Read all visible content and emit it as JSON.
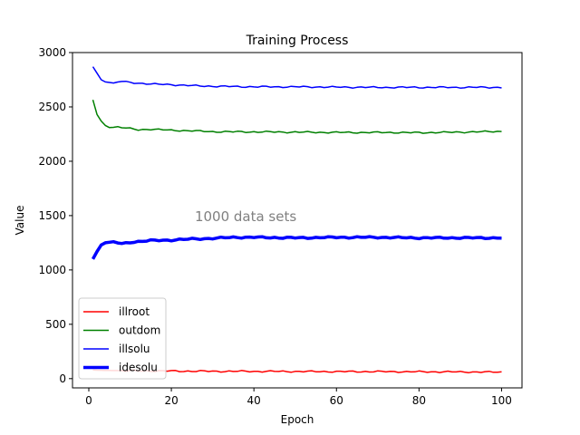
{
  "chart_data": {
    "type": "line",
    "title": "Training Process",
    "xlabel": "Epoch",
    "ylabel": "Value",
    "xlim": [
      -3.95,
      104.95
    ],
    "ylim": [
      -85,
      3000
    ],
    "xticks": [
      0,
      20,
      40,
      60,
      80,
      100
    ],
    "yticks": [
      0,
      500,
      1000,
      1500,
      2000,
      2500,
      3000
    ],
    "grid": false,
    "legend_position": "lower-left",
    "annotation": {
      "text": "1000 data sets",
      "x": 38,
      "y": 1450
    },
    "series": [
      {
        "name": "illroot",
        "color": "#ff0000",
        "width": 1.5,
        "anchors": [
          [
            1,
            80
          ],
          [
            2,
            78
          ],
          [
            5,
            75
          ],
          [
            10,
            72
          ],
          [
            20,
            70
          ],
          [
            30,
            68
          ],
          [
            40,
            67
          ],
          [
            50,
            66
          ],
          [
            60,
            65
          ],
          [
            70,
            65
          ],
          [
            80,
            63
          ],
          [
            90,
            62
          ],
          [
            100,
            60
          ]
        ]
      },
      {
        "name": "outdom",
        "color": "#008000",
        "width": 1.5,
        "anchors": [
          [
            1,
            2565
          ],
          [
            2,
            2430
          ],
          [
            3,
            2370
          ],
          [
            4,
            2330
          ],
          [
            5,
            2310
          ],
          [
            7,
            2315
          ],
          [
            9,
            2305
          ],
          [
            12,
            2290
          ],
          [
            15,
            2295
          ],
          [
            20,
            2285
          ],
          [
            25,
            2280
          ],
          [
            30,
            2272
          ],
          [
            40,
            2270
          ],
          [
            50,
            2268
          ],
          [
            60,
            2265
          ],
          [
            70,
            2265
          ],
          [
            80,
            2263
          ],
          [
            90,
            2268
          ],
          [
            100,
            2275
          ]
        ]
      },
      {
        "name": "illsolu",
        "color": "#0000ff",
        "width": 1.5,
        "anchors": [
          [
            1,
            2870
          ],
          [
            2,
            2810
          ],
          [
            3,
            2750
          ],
          [
            4,
            2730
          ],
          [
            6,
            2720
          ],
          [
            8,
            2735
          ],
          [
            10,
            2725
          ],
          [
            15,
            2710
          ],
          [
            20,
            2705
          ],
          [
            25,
            2695
          ],
          [
            30,
            2690
          ],
          [
            40,
            2685
          ],
          [
            50,
            2685
          ],
          [
            60,
            2682
          ],
          [
            70,
            2680
          ],
          [
            80,
            2680
          ],
          [
            90,
            2680
          ],
          [
            100,
            2680
          ]
        ]
      },
      {
        "name": "idesolu",
        "color": "#0000ff",
        "width": 3.5,
        "anchors": [
          [
            1,
            1100
          ],
          [
            2,
            1170
          ],
          [
            3,
            1230
          ],
          [
            4,
            1250
          ],
          [
            6,
            1260
          ],
          [
            8,
            1240
          ],
          [
            10,
            1255
          ],
          [
            15,
            1270
          ],
          [
            20,
            1275
          ],
          [
            25,
            1285
          ],
          [
            30,
            1290
          ],
          [
            35,
            1300
          ],
          [
            40,
            1300
          ],
          [
            50,
            1295
          ],
          [
            60,
            1300
          ],
          [
            70,
            1300
          ],
          [
            80,
            1295
          ],
          [
            90,
            1295
          ],
          [
            100,
            1295
          ]
        ]
      }
    ]
  }
}
